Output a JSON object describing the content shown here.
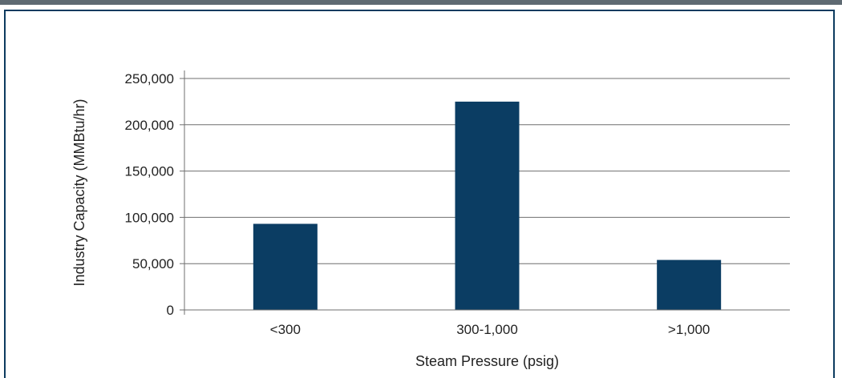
{
  "chart_data": {
    "type": "bar",
    "categories": [
      "<300",
      "300-1,000",
      ">1,000"
    ],
    "values": [
      93000,
      225000,
      54000
    ],
    "xlabel": "Steam Pressure (psig)",
    "ylabel": "Industry Capacity (MMBtu/hr)",
    "ylim": [
      0,
      250000
    ],
    "yticks": [
      0,
      50000,
      100000,
      150000,
      200000,
      250000
    ],
    "ytick_labels": [
      "0",
      "50,000",
      "100,000",
      "150,000",
      "200,000",
      "250,000"
    ],
    "grid": true,
    "legend": "none",
    "colors": {
      "bar": "#0b3d63",
      "grid": "#6f6f6f",
      "frame": "#0c3b5f",
      "top_bar": "#5e6a72"
    }
  }
}
